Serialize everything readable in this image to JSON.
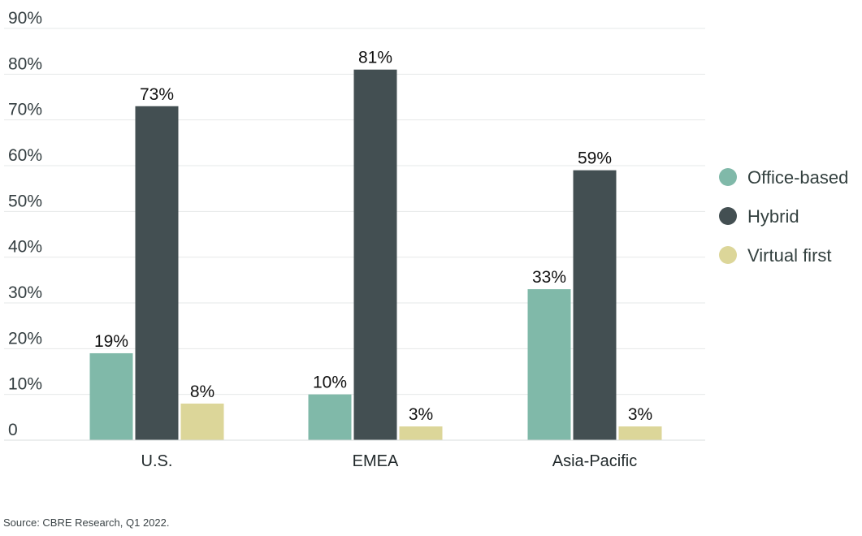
{
  "chart_data": {
    "type": "bar",
    "categories": [
      "U.S.",
      "EMEA",
      "Asia-Pacific"
    ],
    "series": [
      {
        "name": "Office-based",
        "values": [
          19,
          10,
          33
        ],
        "color": "#80b9a9"
      },
      {
        "name": "Hybrid",
        "values": [
          73,
          81,
          59
        ],
        "color": "#434f52"
      },
      {
        "name": "Virtual first",
        "values": [
          8,
          3,
          3
        ],
        "color": "#dcd699"
      }
    ],
    "value_suffix": "%",
    "ylim": [
      0,
      90
    ],
    "yticks": [
      0,
      10,
      20,
      30,
      40,
      50,
      60,
      70,
      80,
      90
    ],
    "ytick_labels": [
      "0",
      "10%",
      "20%",
      "30%",
      "40%",
      "50%",
      "60%",
      "70%",
      "80%",
      "90%"
    ],
    "grid": true,
    "legend_position": "right",
    "title": "",
    "xlabel": "",
    "ylabel": ""
  },
  "source": "Source: CBRE Research, Q1 2022."
}
